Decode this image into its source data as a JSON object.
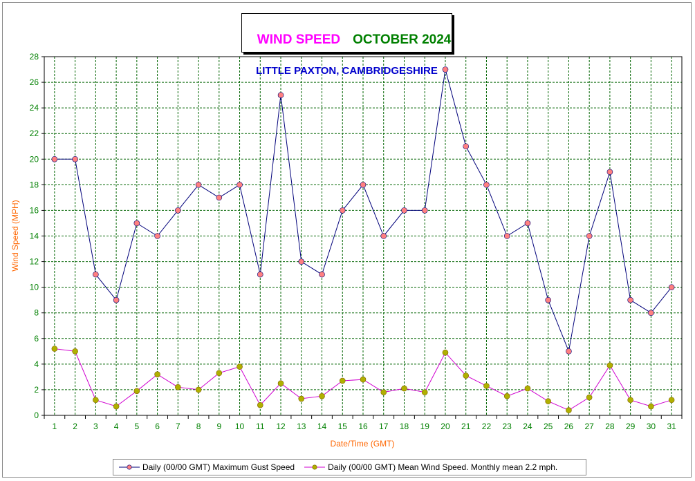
{
  "title": {
    "main": "WIND SPEED",
    "month": "OCTOBER 2024",
    "location": "LITTLE PAXTON, CAMBRIDGESHIRE"
  },
  "colors": {
    "title_main": "#ff00ff",
    "title_month": "#008000",
    "title_location": "#0000cc",
    "axis_labels": "#ff6600",
    "tick_labels": "#008000",
    "grid": "#006400",
    "gust_line": "#00007a",
    "mean_line": "#d000d0",
    "gust_marker": "#ff8080",
    "mean_marker": "#b0b000"
  },
  "chart_data": {
    "type": "line",
    "xlabel": "Date/Time (GMT)",
    "ylabel": "Wind Speed (MPH)",
    "ylim": [
      0,
      28
    ],
    "y_ticks": [
      0,
      2,
      4,
      6,
      8,
      10,
      12,
      14,
      16,
      18,
      20,
      22,
      24,
      26,
      28
    ],
    "x": [
      1,
      2,
      3,
      4,
      5,
      6,
      7,
      8,
      9,
      10,
      11,
      12,
      13,
      14,
      15,
      16,
      17,
      18,
      19,
      20,
      21,
      22,
      23,
      24,
      25,
      26,
      27,
      28,
      29,
      30,
      31
    ],
    "grid": true,
    "legend_position": "bottom",
    "series": [
      {
        "name": "Daily (00/00 GMT) Maximum Gust Speed",
        "values": [
          20,
          20,
          11,
          9,
          15,
          14,
          16,
          18,
          17,
          18,
          11,
          25,
          12,
          11,
          16,
          18,
          14,
          16,
          16,
          27,
          21,
          18,
          14,
          15,
          9,
          5,
          14,
          19,
          9,
          8,
          10
        ]
      },
      {
        "name": "Daily (00/00 GMT) Mean Wind Speed. Monthly mean 2.2 mph.",
        "values": [
          5.2,
          5.0,
          1.2,
          0.7,
          1.9,
          3.2,
          2.2,
          2.0,
          3.3,
          3.8,
          0.8,
          2.5,
          1.3,
          1.5,
          2.7,
          2.8,
          1.8,
          2.1,
          1.8,
          4.9,
          3.1,
          2.3,
          1.5,
          2.1,
          1.1,
          0.4,
          1.4,
          3.9,
          1.2,
          0.7,
          1.2
        ]
      }
    ]
  }
}
